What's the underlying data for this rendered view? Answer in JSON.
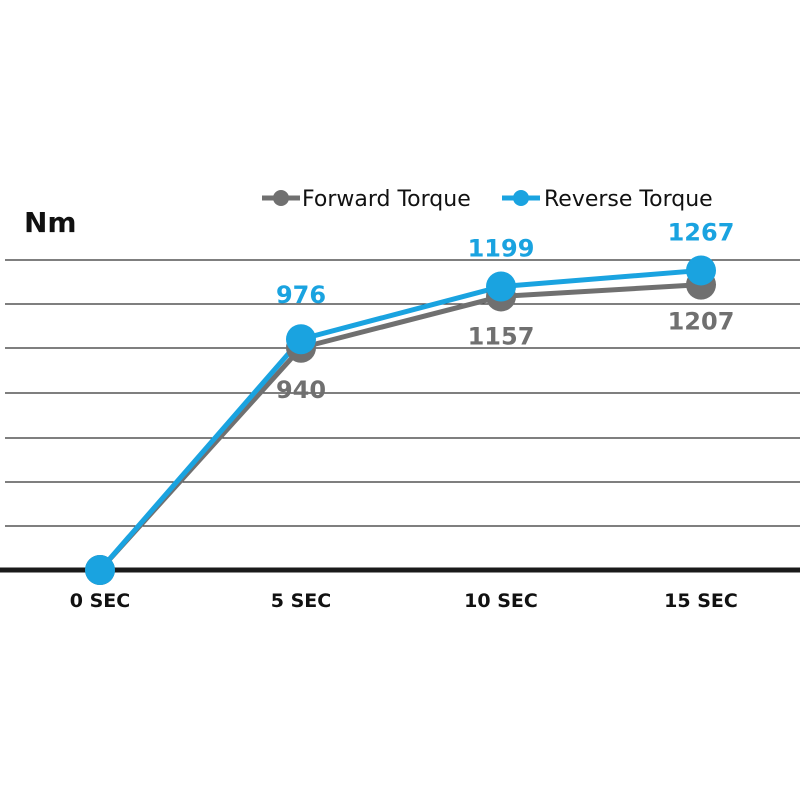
{
  "chart_data": {
    "type": "line",
    "ylabel": "Nm",
    "categories": [
      "0 SEC",
      "5 SEC",
      "10 SEC",
      "15 SEC"
    ],
    "ylim": [
      0,
      1400
    ],
    "grid": true,
    "legend_position": "top-right",
    "series": [
      {
        "name": "Forward Torque",
        "color": "#707070",
        "values": [
          0,
          940,
          1157,
          1207
        ],
        "data_labels": [
          "",
          "940",
          "1157",
          "1207"
        ]
      },
      {
        "name": "Reverse Torque",
        "color": "#1aa3e0",
        "values": [
          0,
          976,
          1199,
          1267
        ],
        "data_labels": [
          "",
          "976",
          "1199",
          "1267"
        ]
      }
    ]
  }
}
